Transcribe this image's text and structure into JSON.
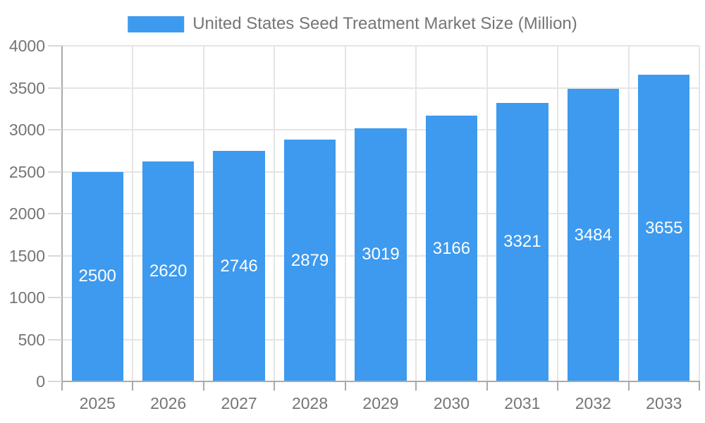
{
  "chart_data": {
    "type": "bar",
    "title": "United States Seed Treatment Market Size (Million)",
    "legend_position": "top",
    "series": [
      {
        "name": "United States Seed Treatment Market Size (Million)",
        "values": [
          2500,
          2620,
          2746,
          2879,
          3019,
          3166,
          3321,
          3484,
          3655
        ]
      }
    ],
    "categories": [
      "2025",
      "2026",
      "2027",
      "2028",
      "2029",
      "2030",
      "2031",
      "2032",
      "2033"
    ],
    "xlabel": "",
    "ylabel": "",
    "ylim": [
      0,
      4000
    ],
    "ytick_step": 500,
    "yticks": [
      "0",
      "500",
      "1000",
      "1500",
      "2000",
      "2500",
      "3000",
      "3500",
      "4000"
    ],
    "grid": true,
    "bar_label_position": "inside-center",
    "colors": {
      "bar": "#3d9aef",
      "bar_value_label": "#ffffff",
      "axis_text": "#757575",
      "axis_line": "#aaaaaa",
      "y_tick": "#d9d9d9",
      "gridline": "#e5e5e5",
      "background": "#ffffff"
    }
  }
}
